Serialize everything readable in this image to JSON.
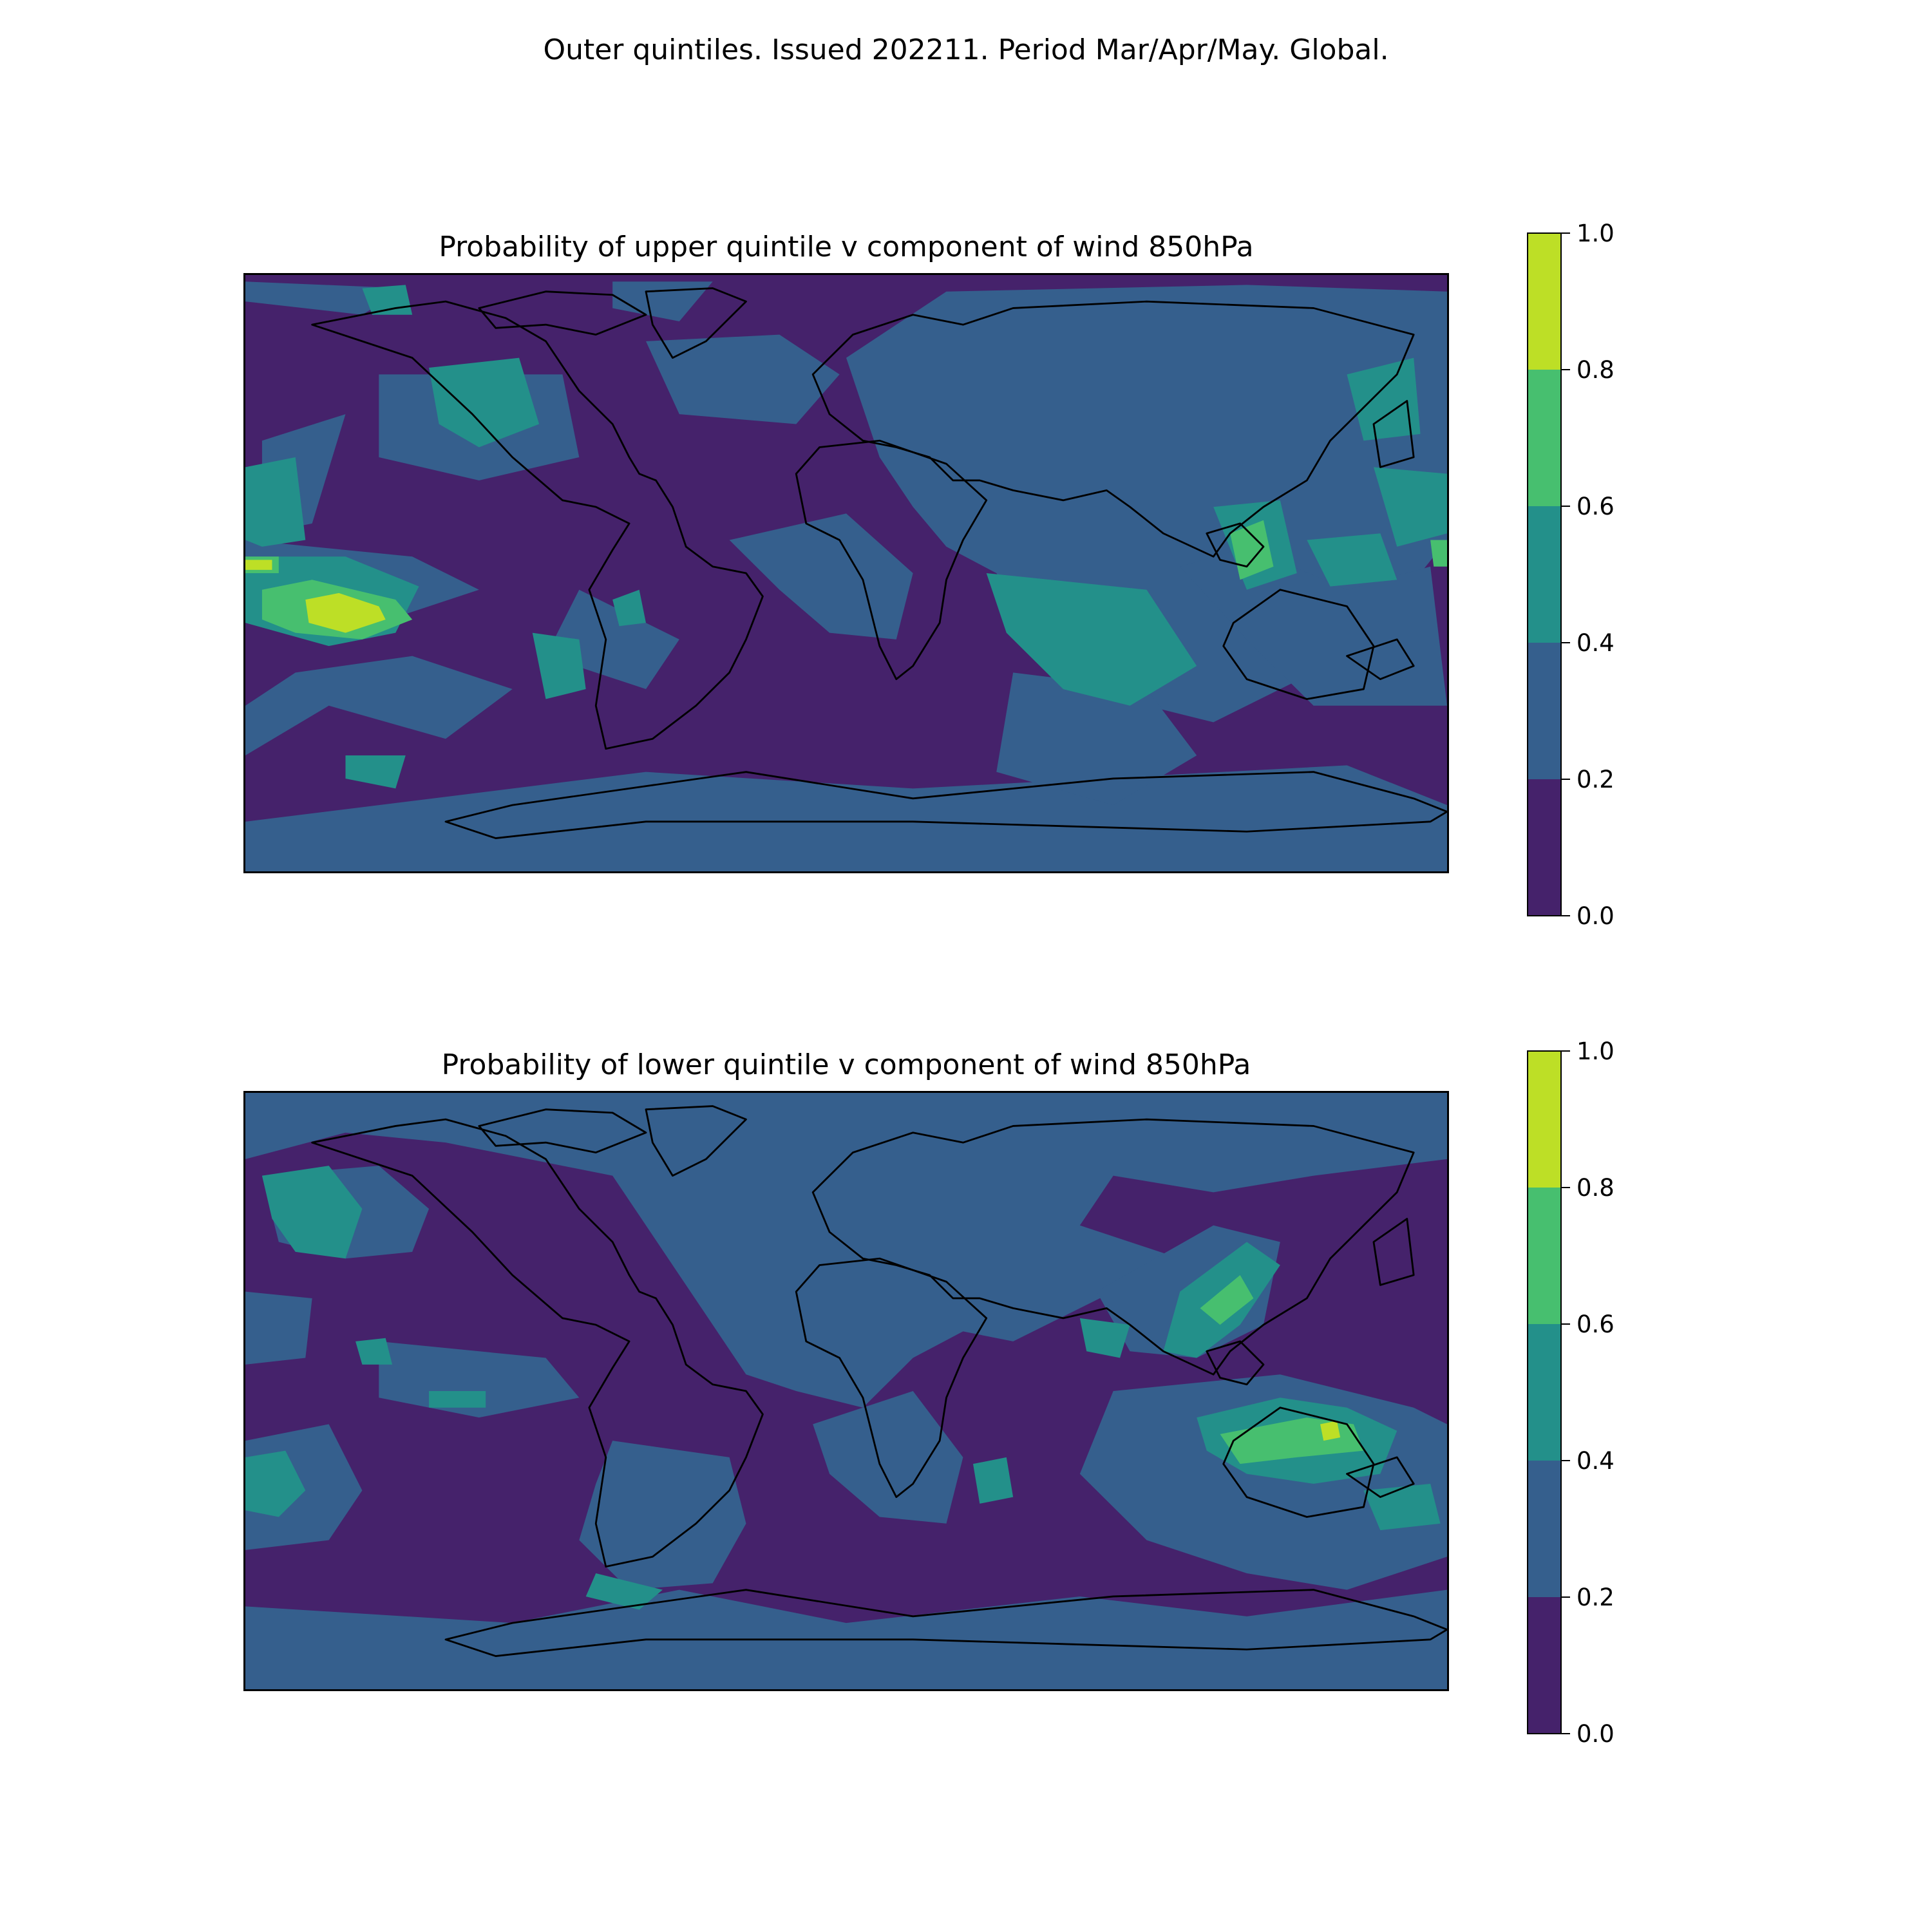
{
  "figure_title": "Outer quintiles. Issued 202211. Period Mar/Apr/May. Global.",
  "palette": [
    "#440154",
    "#3b528b",
    "#21918c",
    "#5ec962",
    "#fde725"
  ],
  "display_palette": [
    "#45226b",
    "#355f8d",
    "#23908a",
    "#47bf6f",
    "#bddf26"
  ],
  "coastline_color": "#000000",
  "chart_data": [
    {
      "type": "map",
      "title": "Probability of upper quintile v component of wind 850hPa",
      "colorbar": {
        "levels": [
          0.0,
          0.2,
          0.4,
          0.6,
          0.8,
          1.0
        ],
        "tick_labels": [
          "0.0",
          "0.2",
          "0.4",
          "0.6",
          "0.8",
          "1.0"
        ]
      },
      "background_class": "0.0–0.2",
      "regions": [
        {
          "location": "central tropical Pacific",
          "class": "0.8–1.0"
        },
        {
          "location": "north-east Pacific",
          "class": "0.4–0.6"
        },
        {
          "location": "northern Canada / Hudson Bay",
          "class": "0.4–0.6"
        },
        {
          "location": "south-west Indian Ocean",
          "class": "0.4–0.6"
        },
        {
          "location": "Philippines / maritime continent",
          "class": "0.6–0.8"
        },
        {
          "location": "north-west Pacific off Japan",
          "class": "0.4–0.6"
        },
        {
          "location": "south-east Pacific off Peru",
          "class": "0.4–0.6"
        },
        {
          "location": "Africa, Europe, North Atlantic, Asia",
          "class": "0.2–0.4"
        }
      ]
    },
    {
      "type": "map",
      "title": "Probability of lower quintile v component of wind 850hPa",
      "colorbar": {
        "levels": [
          0.0,
          0.2,
          0.4,
          0.6,
          0.8,
          1.0
        ],
        "tick_labels": [
          "0.0",
          "0.2",
          "0.4",
          "0.6",
          "0.8",
          "1.0"
        ]
      },
      "background_class": "0.0–0.2",
      "regions": [
        {
          "location": "northern Australia / Arafura Sea",
          "class": "0.6–0.8"
        },
        {
          "location": "South China Sea / western Pacific",
          "class": "0.4–0.6"
        },
        {
          "location": "north-east Pacific off Alaska",
          "class": "0.4–0.6"
        },
        {
          "location": "south-west Pacific",
          "class": "0.4–0.6"
        },
        {
          "location": "Bay of Bengal",
          "class": "0.4–0.6"
        },
        {
          "location": "south-west Indian Ocean off Madagascar",
          "class": "0.4–0.6"
        },
        {
          "location": "Atlantic, Africa, South America, Asia",
          "class": "0.2–0.4"
        }
      ]
    }
  ]
}
